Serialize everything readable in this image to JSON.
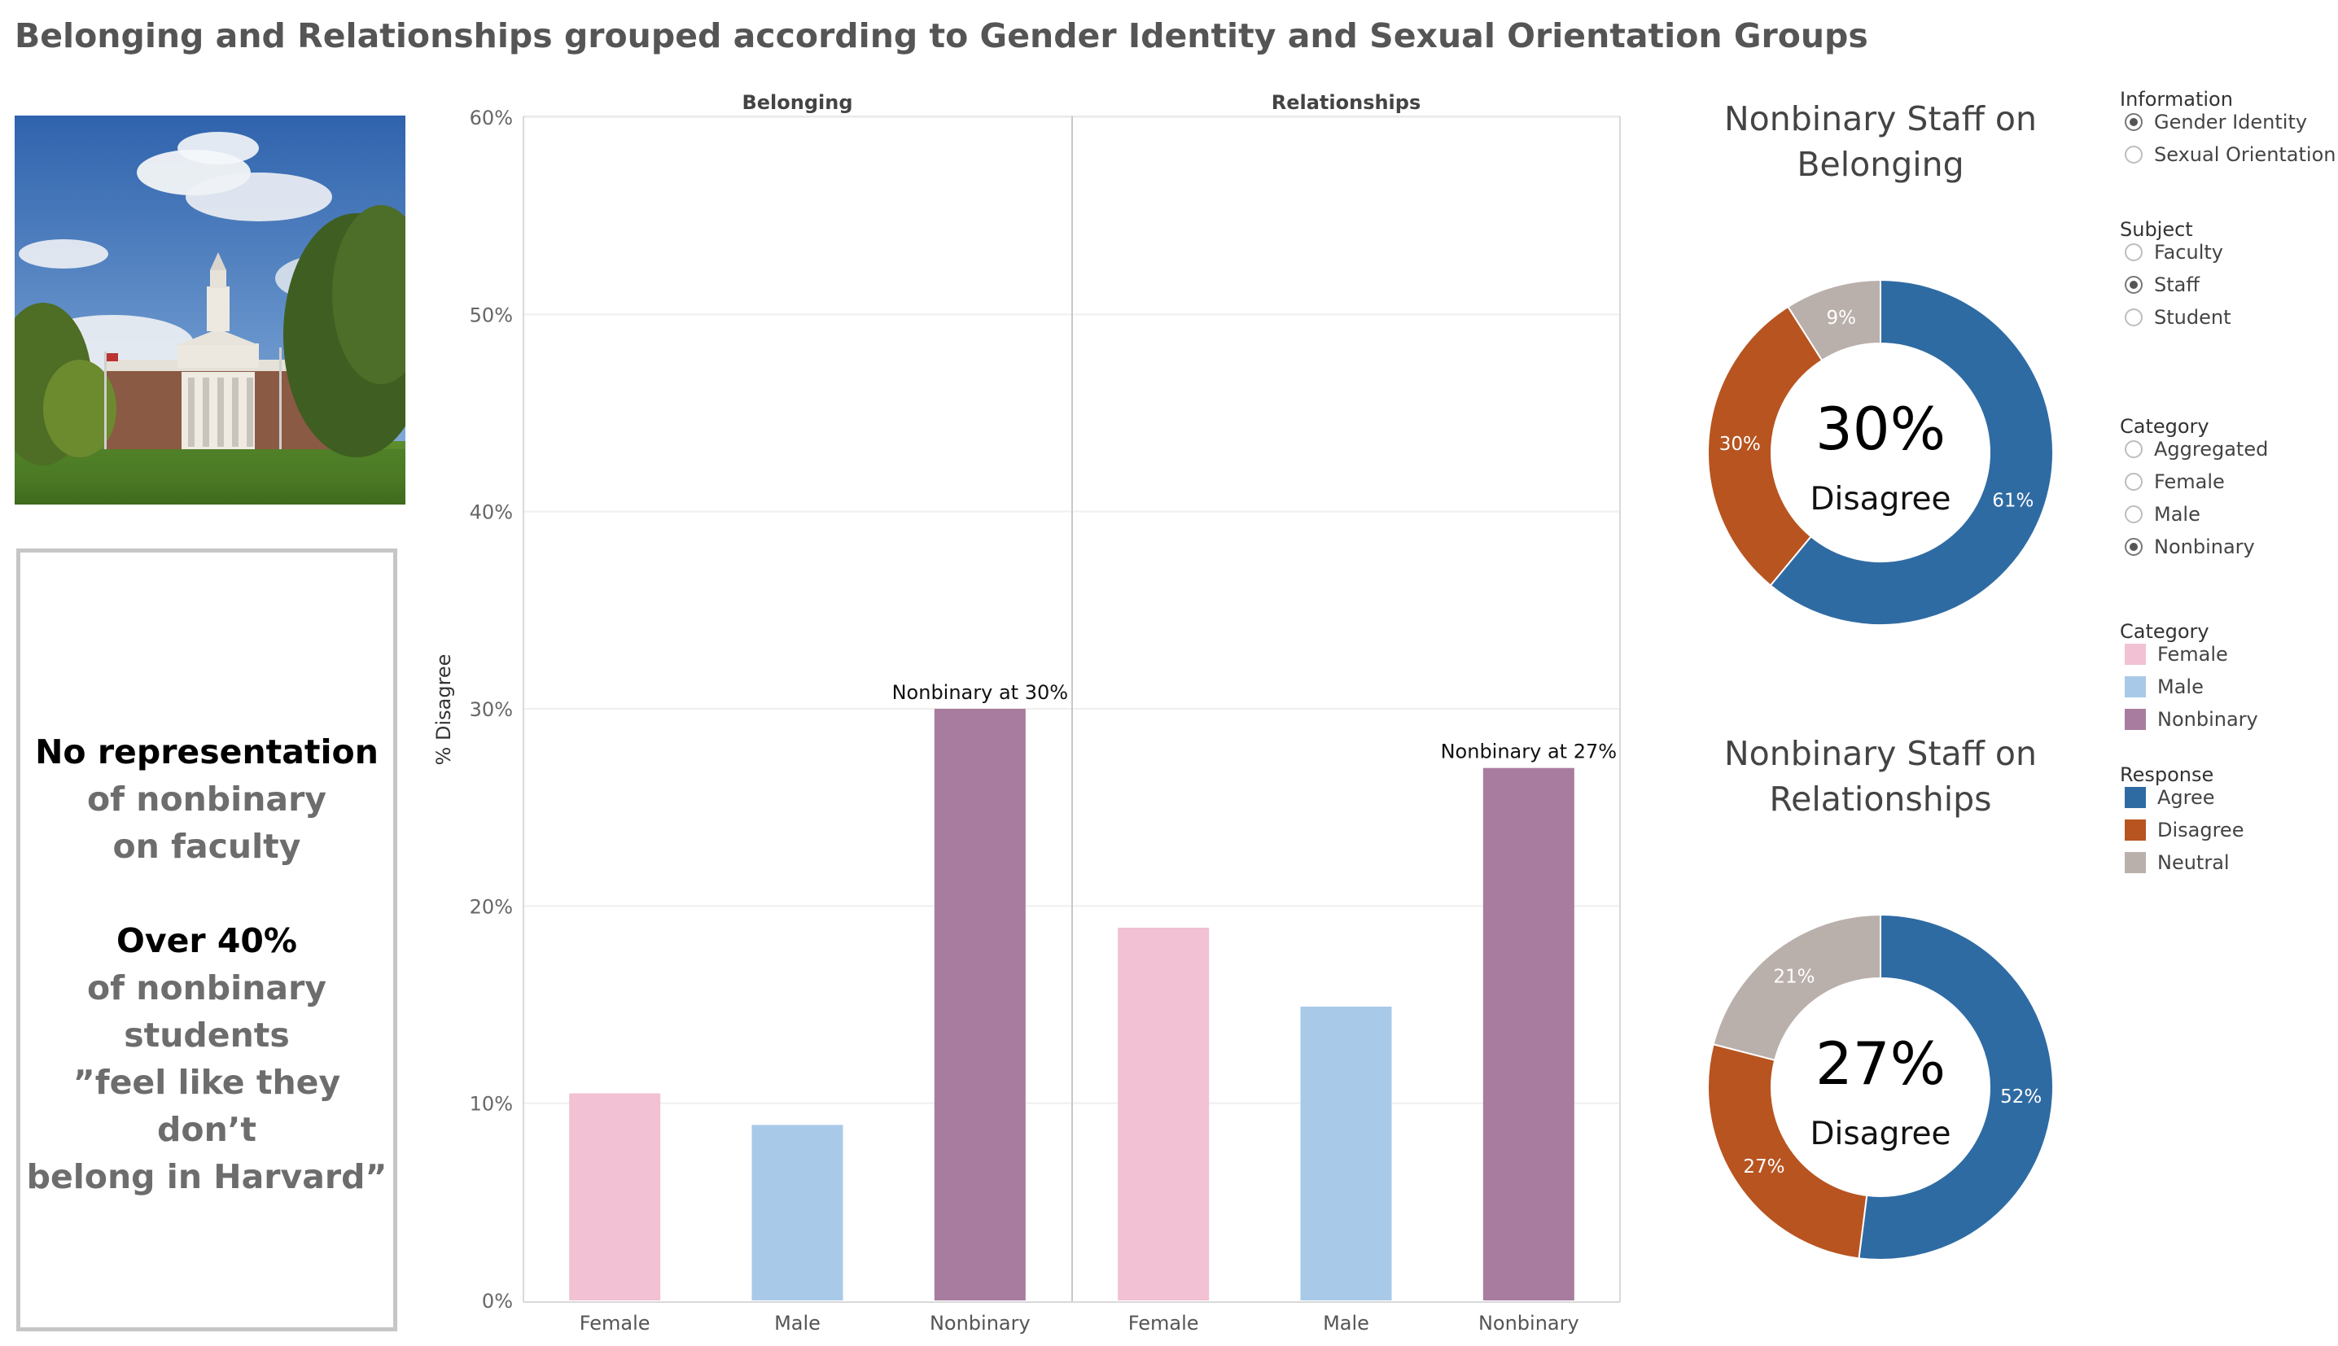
{
  "title": "Belonging and Relationships grouped according to Gender Identity and Sexual Orientation Groups",
  "callout": {
    "line1": "No representation",
    "line2": "of nonbinary",
    "line3": "on faculty",
    "line4": "Over 40%",
    "line5": "of nonbinary",
    "line6": "students",
    "line7": "”feel like they don’t",
    "line8": "belong in Harvard”"
  },
  "chart_data": [
    {
      "type": "bar",
      "panels": [
        "Belonging",
        "Relationships"
      ],
      "categories": [
        "Female",
        "Male",
        "Nonbinary"
      ],
      "series": [
        {
          "panel": "Belonging",
          "values": [
            10.5,
            8.9,
            30
          ]
        },
        {
          "panel": "Relationships",
          "values": [
            18.9,
            14.9,
            27
          ]
        }
      ],
      "colors": [
        "#f2c1d3",
        "#a9c9e8",
        "#a87c9f"
      ],
      "ylabel": "% Disagree",
      "ylim": [
        0,
        60
      ],
      "yticks": [
        "0%",
        "10%",
        "20%",
        "30%",
        "40%",
        "50%",
        "60%"
      ],
      "annotations": [
        {
          "panel": "Belonging",
          "category": "Nonbinary",
          "text": "Nonbinary at 30%"
        },
        {
          "panel": "Relationships",
          "category": "Nonbinary",
          "text": "Nonbinary at 27%"
        }
      ],
      "grid": true
    },
    {
      "type": "pie",
      "title_line1": "Nonbinary Staff on",
      "title_line2": "Belonging",
      "center_value": "30%",
      "center_label": "Disagree",
      "slices": [
        {
          "label": "Agree",
          "value": 61,
          "text": "61%"
        },
        {
          "label": "Disagree",
          "value": 30,
          "text": "30%"
        },
        {
          "label": "Neutral",
          "value": 9,
          "text": "9%"
        }
      ]
    },
    {
      "type": "pie",
      "title_line1": "Nonbinary Staff on",
      "title_line2": "Relationships",
      "center_value": "27%",
      "center_label": "Disagree",
      "slices": [
        {
          "label": "Agree",
          "value": 52,
          "text": "52%"
        },
        {
          "label": "Disagree",
          "value": 27,
          "text": "27%"
        },
        {
          "label": "Neutral",
          "value": 21,
          "text": "21%"
        }
      ]
    }
  ],
  "response_colors": {
    "Agree": "#2f6ba3",
    "Disagree": "#b85420",
    "Neutral": "#bab0ab"
  },
  "legend": {
    "information": {
      "title": "Information",
      "options": [
        "Gender Identity",
        "Sexual Orientation"
      ],
      "selected": "Gender Identity"
    },
    "subject": {
      "title": "Subject",
      "options": [
        "Faculty",
        "Staff",
        "Student"
      ],
      "selected": "Staff"
    },
    "category_filter": {
      "title": "Category",
      "options": [
        "Aggregated",
        "Female",
        "Male",
        "Nonbinary"
      ],
      "selected": "Nonbinary"
    },
    "category_colors": {
      "title": "Category",
      "items": [
        {
          "label": "Female",
          "color": "#f2c1d3"
        },
        {
          "label": "Male",
          "color": "#a9c9e8"
        },
        {
          "label": "Nonbinary",
          "color": "#a87c9f"
        }
      ]
    },
    "response_colors": {
      "title": "Response",
      "items": [
        {
          "label": "Agree",
          "color": "#2f6ba3"
        },
        {
          "label": "Disagree",
          "color": "#b85420"
        },
        {
          "label": "Neutral",
          "color": "#bab0ab"
        }
      ]
    }
  }
}
